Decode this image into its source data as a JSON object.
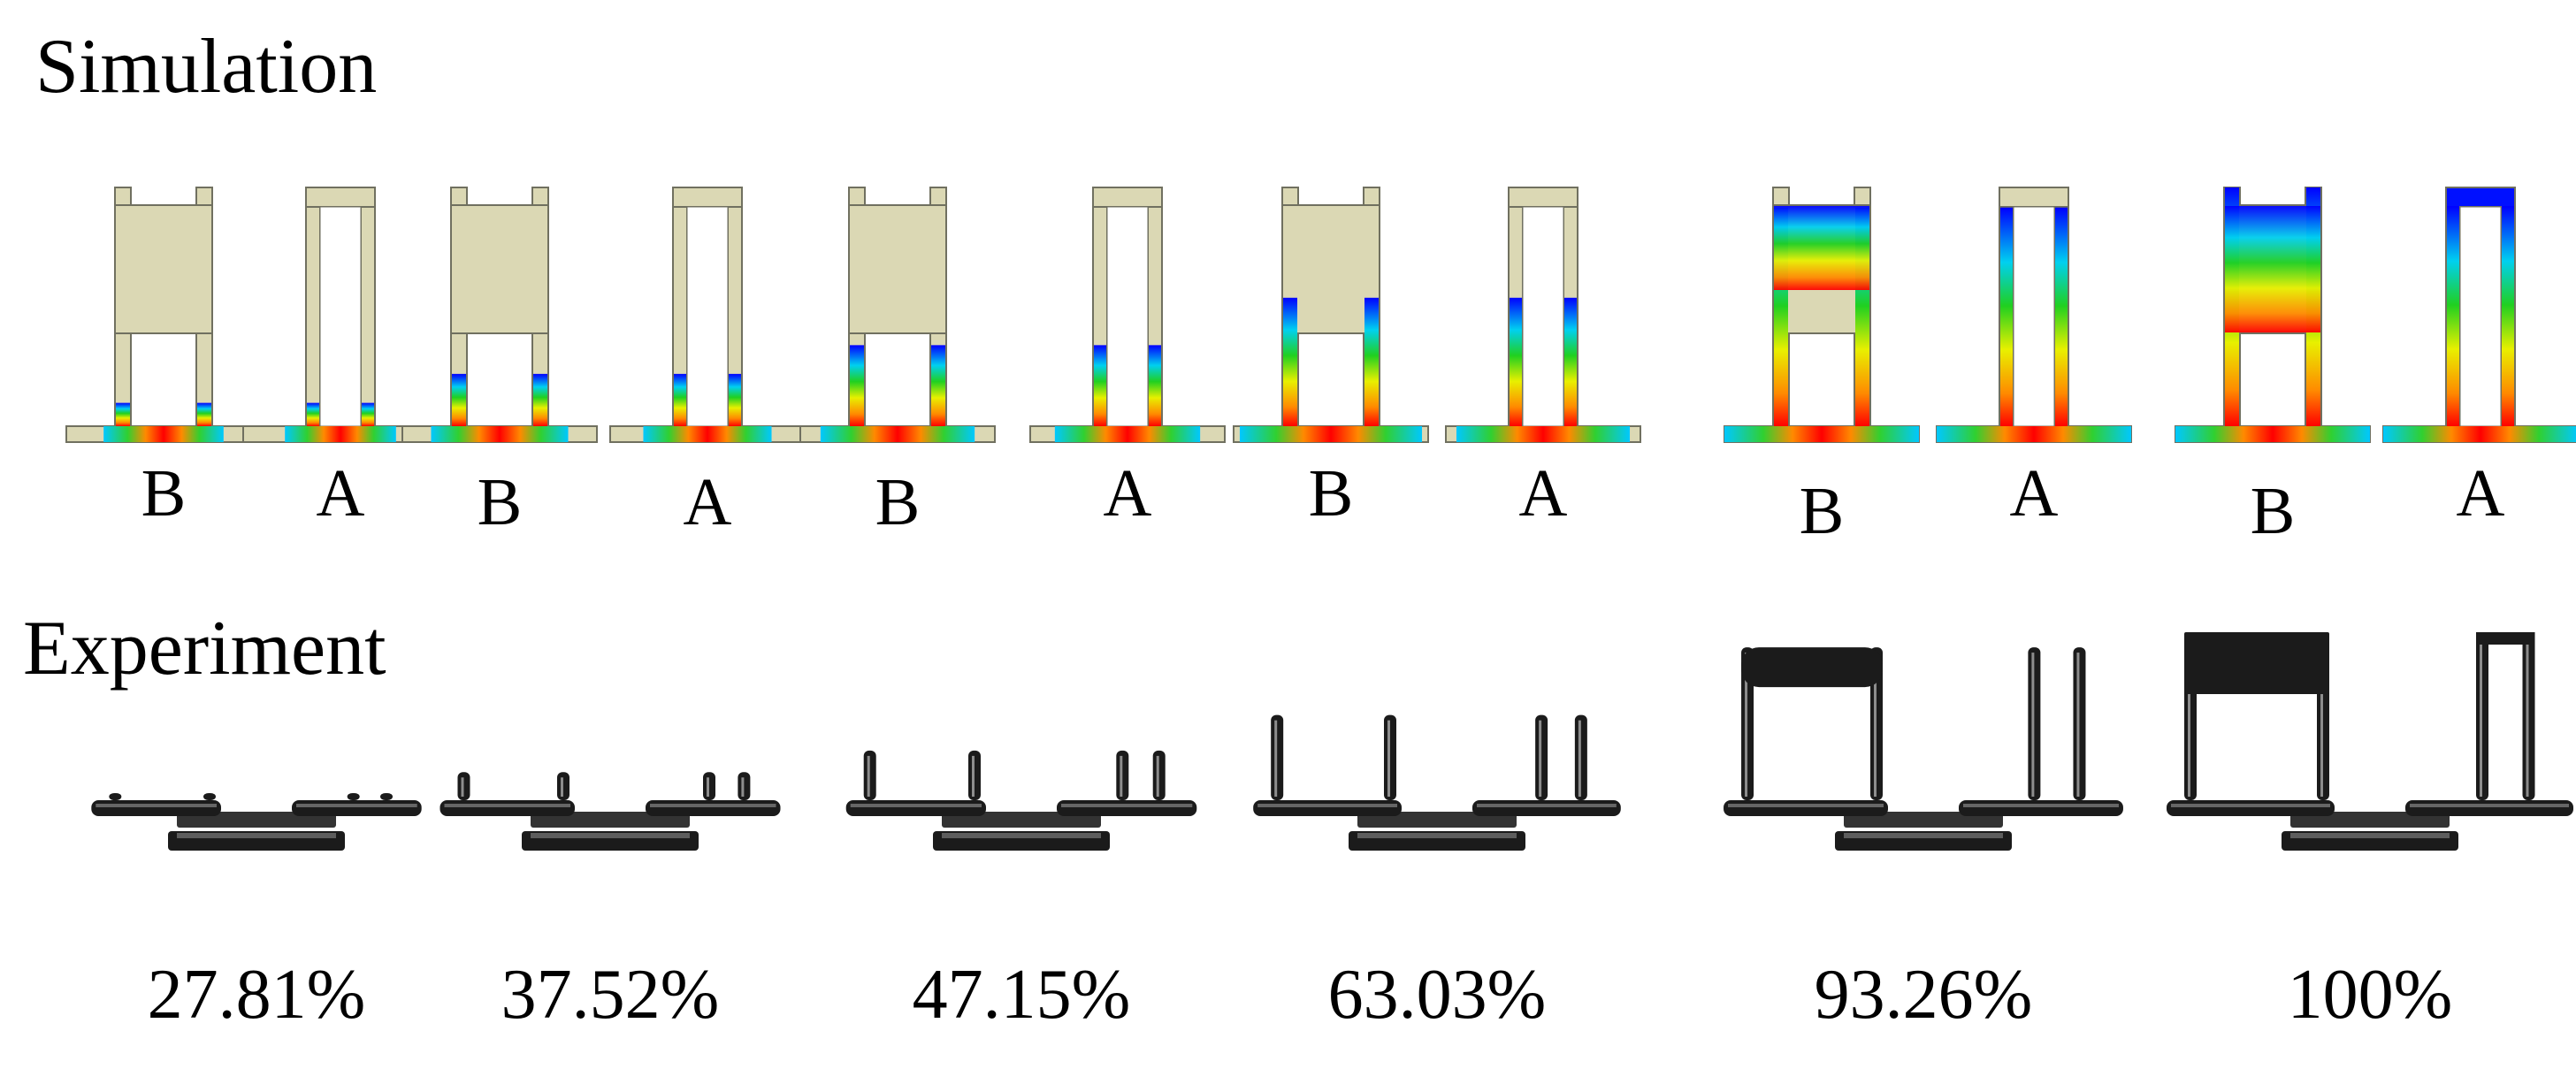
{
  "titles": {
    "simulation": "Simulation",
    "experiment": "Experiment"
  },
  "fill_stages": [
    {
      "percent": "27.81%",
      "fill": 0.2781,
      "labels": [
        "B",
        "A"
      ]
    },
    {
      "percent": "37.52%",
      "fill": 0.3752,
      "labels": [
        "B",
        "A"
      ]
    },
    {
      "percent": "47.15%",
      "fill": 0.4715,
      "labels": [
        "B",
        "A"
      ]
    },
    {
      "percent": "63.03%",
      "fill": 0.6303,
      "labels": [
        "B",
        "A"
      ]
    },
    {
      "percent": "93.26%",
      "fill": 0.9326,
      "labels": [
        "B",
        "A"
      ]
    },
    {
      "percent": "100%",
      "fill": 1.0,
      "labels": [
        "B",
        "A"
      ]
    }
  ],
  "colors": {
    "unfilled_part": "#dbd8b4",
    "outline": "#707060",
    "gradient": [
      "#ff0000",
      "#ff8a00",
      "#ffff00",
      "#00d000",
      "#00cfff",
      "#0000ff"
    ],
    "experiment_part": "#1b1b1b"
  }
}
